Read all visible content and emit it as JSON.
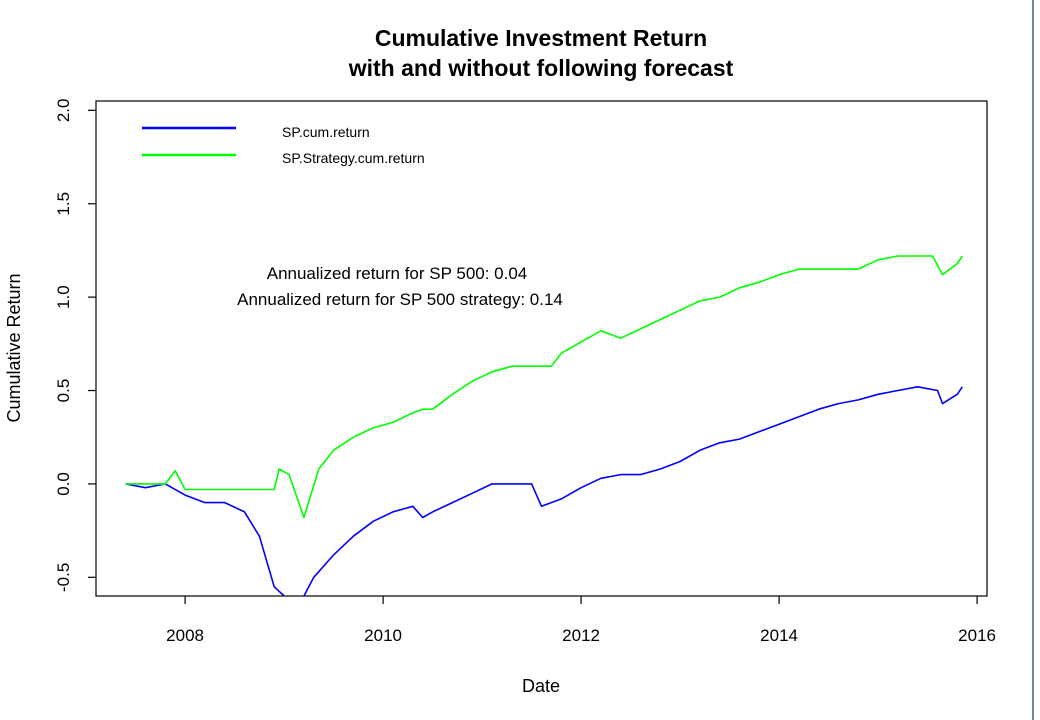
{
  "chart_data": {
    "type": "line",
    "title_line1": "Cumulative Investment Return",
    "title_line2": "with and without following forecast",
    "xlabel": "Date",
    "ylabel": "Cumulative Return",
    "xlim": [
      2007.1,
      2016.1
    ],
    "ylim": [
      -0.6,
      2.05
    ],
    "x_ticks": [
      2008,
      2010,
      2012,
      2014,
      2016
    ],
    "x_tick_labels": [
      "2008",
      "2010",
      "2012",
      "2014",
      "2016"
    ],
    "y_ticks": [
      -0.5,
      0.0,
      0.5,
      1.0,
      1.5,
      2.0
    ],
    "y_tick_labels": [
      "-0.5",
      "0.0",
      "0.5",
      "1.0",
      "1.5",
      "2.0"
    ],
    "legend_position": "top-left",
    "annotations": [
      "Annualized return for SP 500: 0.04",
      "Annualized return for SP 500 strategy: 0.14"
    ],
    "series": [
      {
        "name": "SP.cum.return",
        "color": "#0000ff",
        "points": [
          [
            2007.4,
            0.0
          ],
          [
            2007.6,
            -0.02
          ],
          [
            2007.8,
            0.0
          ],
          [
            2008.0,
            -0.06
          ],
          [
            2008.2,
            -0.1
          ],
          [
            2008.4,
            -0.1
          ],
          [
            2008.6,
            -0.15
          ],
          [
            2008.75,
            -0.28
          ],
          [
            2008.9,
            -0.55
          ],
          [
            2009.0,
            -0.6
          ],
          [
            2009.15,
            -0.65
          ],
          [
            2009.3,
            -0.5
          ],
          [
            2009.5,
            -0.38
          ],
          [
            2009.7,
            -0.28
          ],
          [
            2009.9,
            -0.2
          ],
          [
            2010.1,
            -0.15
          ],
          [
            2010.3,
            -0.12
          ],
          [
            2010.4,
            -0.18
          ],
          [
            2010.5,
            -0.15
          ],
          [
            2010.7,
            -0.1
          ],
          [
            2010.9,
            -0.05
          ],
          [
            2011.1,
            0.0
          ],
          [
            2011.3,
            0.0
          ],
          [
            2011.5,
            0.0
          ],
          [
            2011.6,
            -0.12
          ],
          [
            2011.8,
            -0.08
          ],
          [
            2012.0,
            -0.02
          ],
          [
            2012.2,
            0.03
          ],
          [
            2012.4,
            0.05
          ],
          [
            2012.6,
            0.05
          ],
          [
            2012.8,
            0.08
          ],
          [
            2013.0,
            0.12
          ],
          [
            2013.2,
            0.18
          ],
          [
            2013.4,
            0.22
          ],
          [
            2013.6,
            0.24
          ],
          [
            2013.8,
            0.28
          ],
          [
            2014.0,
            0.32
          ],
          [
            2014.2,
            0.36
          ],
          [
            2014.4,
            0.4
          ],
          [
            2014.6,
            0.43
          ],
          [
            2014.8,
            0.45
          ],
          [
            2015.0,
            0.48
          ],
          [
            2015.2,
            0.5
          ],
          [
            2015.4,
            0.52
          ],
          [
            2015.6,
            0.5
          ],
          [
            2015.65,
            0.43
          ],
          [
            2015.8,
            0.48
          ],
          [
            2015.85,
            0.52
          ]
        ]
      },
      {
        "name": "SP.Strategy.cum.return",
        "color": "#00ff00",
        "points": [
          [
            2007.4,
            0.0
          ],
          [
            2007.6,
            0.0
          ],
          [
            2007.8,
            0.0
          ],
          [
            2007.9,
            0.07
          ],
          [
            2008.0,
            -0.03
          ],
          [
            2008.2,
            -0.03
          ],
          [
            2008.4,
            -0.03
          ],
          [
            2008.6,
            -0.03
          ],
          [
            2008.9,
            -0.03
          ],
          [
            2008.95,
            0.08
          ],
          [
            2009.05,
            0.05
          ],
          [
            2009.2,
            -0.18
          ],
          [
            2009.35,
            0.08
          ],
          [
            2009.5,
            0.18
          ],
          [
            2009.7,
            0.25
          ],
          [
            2009.9,
            0.3
          ],
          [
            2010.1,
            0.33
          ],
          [
            2010.3,
            0.38
          ],
          [
            2010.4,
            0.4
          ],
          [
            2010.5,
            0.4
          ],
          [
            2010.7,
            0.48
          ],
          [
            2010.9,
            0.55
          ],
          [
            2011.1,
            0.6
          ],
          [
            2011.3,
            0.63
          ],
          [
            2011.5,
            0.63
          ],
          [
            2011.7,
            0.63
          ],
          [
            2011.8,
            0.7
          ],
          [
            2012.0,
            0.76
          ],
          [
            2012.2,
            0.82
          ],
          [
            2012.4,
            0.78
          ],
          [
            2012.6,
            0.83
          ],
          [
            2012.8,
            0.88
          ],
          [
            2013.0,
            0.93
          ],
          [
            2013.2,
            0.98
          ],
          [
            2013.4,
            1.0
          ],
          [
            2013.6,
            1.05
          ],
          [
            2013.8,
            1.08
          ],
          [
            2014.0,
            1.12
          ],
          [
            2014.2,
            1.15
          ],
          [
            2014.4,
            1.15
          ],
          [
            2014.6,
            1.15
          ],
          [
            2014.8,
            1.15
          ],
          [
            2015.0,
            1.2
          ],
          [
            2015.2,
            1.22
          ],
          [
            2015.4,
            1.22
          ],
          [
            2015.55,
            1.22
          ],
          [
            2015.65,
            1.12
          ],
          [
            2015.8,
            1.18
          ],
          [
            2015.85,
            1.22
          ]
        ]
      }
    ]
  }
}
